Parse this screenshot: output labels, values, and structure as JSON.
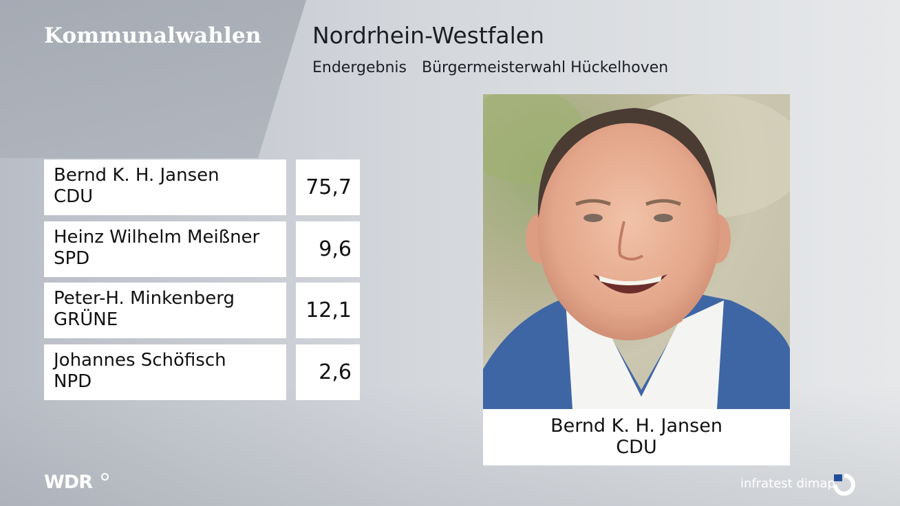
{
  "header": {
    "brand": "Kommunalwahlen",
    "region": "Nordrhein-Westfalen",
    "status": "Endergebnis",
    "election": "Bürgermeisterwahl Hückelhoven"
  },
  "results": [
    {
      "name": "Bernd K. H. Jansen",
      "party": "CDU",
      "value": "75,7"
    },
    {
      "name": "Heinz Wilhelm Meißner",
      "party": "SPD",
      "value": "9,6"
    },
    {
      "name": "Peter-H. Minkenberg",
      "party": "GRÜNE",
      "value": "12,1"
    },
    {
      "name": "Johannes Schöfisch",
      "party": "NPD",
      "value": "2,6"
    }
  ],
  "winner": {
    "name": "Bernd K. H. Jansen",
    "party": "CDU",
    "photo_icon": "person-portrait"
  },
  "footer": {
    "broadcaster_logo": "WDR",
    "pollster": "infratest dimap",
    "pollster_icon": "infratest-dimap-logo-icon"
  },
  "colors": {
    "text": "#111111",
    "box_background": "#ffffff",
    "background": "#d3d6db"
  }
}
